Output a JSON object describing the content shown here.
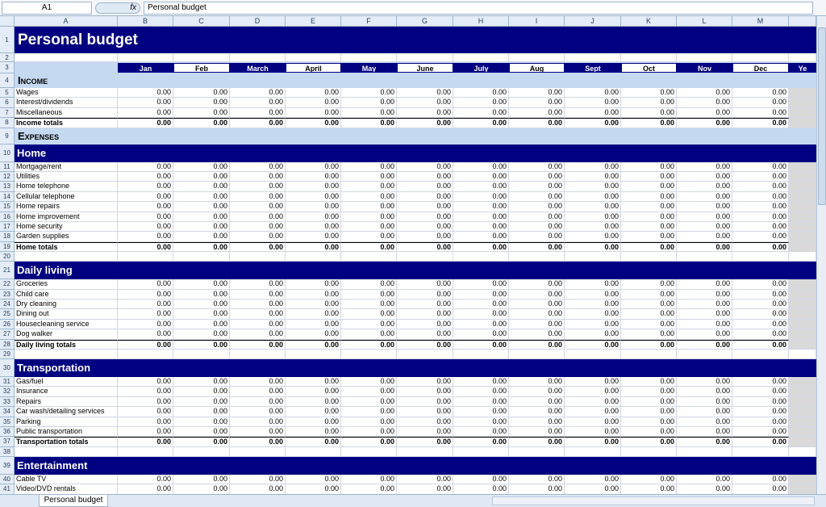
{
  "name_box": "A1",
  "fx_label": "fx",
  "formula": "Personal budget",
  "sheet_tab": "Personal budget",
  "columns": [
    "A",
    "B",
    "C",
    "D",
    "E",
    "F",
    "G",
    "H",
    "I",
    "J",
    "K",
    "L",
    "M"
  ],
  "months": [
    "Jan",
    "Feb",
    "March",
    "April",
    "May",
    "June",
    "July",
    "Aug",
    "Sept",
    "Oct",
    "Nov",
    "Dec",
    "Ye"
  ],
  "row_numbers": [
    1,
    2,
    3,
    4,
    5,
    6,
    7,
    8,
    9,
    10,
    11,
    12,
    13,
    14,
    15,
    16,
    17,
    18,
    19,
    20,
    21,
    22,
    23,
    24,
    25,
    26,
    27,
    28,
    29,
    30,
    31,
    32,
    33,
    34,
    35,
    36,
    37,
    38,
    39,
    40,
    41
  ],
  "rows": [
    {
      "kind": "title",
      "label": "Personal budget"
    },
    {
      "kind": "blank"
    },
    {
      "kind": "months"
    },
    {
      "kind": "section",
      "label": "Income"
    },
    {
      "kind": "item",
      "label": "Wages",
      "values": [
        "0.00",
        "0.00",
        "0.00",
        "0.00",
        "0.00",
        "0.00",
        "0.00",
        "0.00",
        "0.00",
        "0.00",
        "0.00",
        "0.00"
      ]
    },
    {
      "kind": "item",
      "label": "Interest/dividends",
      "values": [
        "0.00",
        "0.00",
        "0.00",
        "0.00",
        "0.00",
        "0.00",
        "0.00",
        "0.00",
        "0.00",
        "0.00",
        "0.00",
        "0.00"
      ]
    },
    {
      "kind": "item",
      "label": "Miscellaneous",
      "values": [
        "0.00",
        "0.00",
        "0.00",
        "0.00",
        "0.00",
        "0.00",
        "0.00",
        "0.00",
        "0.00",
        "0.00",
        "0.00",
        "0.00"
      ]
    },
    {
      "kind": "total",
      "label": "Income totals",
      "values": [
        "0.00",
        "0.00",
        "0.00",
        "0.00",
        "0.00",
        "0.00",
        "0.00",
        "0.00",
        "0.00",
        "0.00",
        "0.00",
        "0.00"
      ]
    },
    {
      "kind": "section",
      "label": "Expenses"
    },
    {
      "kind": "band",
      "label": "Home"
    },
    {
      "kind": "item",
      "label": "Mortgage/rent",
      "values": [
        "0.00",
        "0.00",
        "0.00",
        "0.00",
        "0.00",
        "0.00",
        "0.00",
        "0.00",
        "0.00",
        "0.00",
        "0.00",
        "0.00"
      ]
    },
    {
      "kind": "item",
      "label": "Utilities",
      "values": [
        "0.00",
        "0.00",
        "0.00",
        "0.00",
        "0.00",
        "0.00",
        "0.00",
        "0.00",
        "0.00",
        "0.00",
        "0.00",
        "0.00"
      ]
    },
    {
      "kind": "item",
      "label": "Home telephone",
      "values": [
        "0.00",
        "0.00",
        "0.00",
        "0.00",
        "0.00",
        "0.00",
        "0.00",
        "0.00",
        "0.00",
        "0.00",
        "0.00",
        "0.00"
      ]
    },
    {
      "kind": "item",
      "label": "Cellular telephone",
      "values": [
        "0.00",
        "0.00",
        "0.00",
        "0.00",
        "0.00",
        "0.00",
        "0.00",
        "0.00",
        "0.00",
        "0.00",
        "0.00",
        "0.00"
      ]
    },
    {
      "kind": "item",
      "label": "Home repairs",
      "values": [
        "0.00",
        "0.00",
        "0.00",
        "0.00",
        "0.00",
        "0.00",
        "0.00",
        "0.00",
        "0.00",
        "0.00",
        "0.00",
        "0.00"
      ]
    },
    {
      "kind": "item",
      "label": "Home improvement",
      "values": [
        "0.00",
        "0.00",
        "0.00",
        "0.00",
        "0.00",
        "0.00",
        "0.00",
        "0.00",
        "0.00",
        "0.00",
        "0.00",
        "0.00"
      ]
    },
    {
      "kind": "item",
      "label": "Home security",
      "values": [
        "0.00",
        "0.00",
        "0.00",
        "0.00",
        "0.00",
        "0.00",
        "0.00",
        "0.00",
        "0.00",
        "0.00",
        "0.00",
        "0.00"
      ]
    },
    {
      "kind": "item",
      "label": "Garden supplies",
      "values": [
        "0.00",
        "0.00",
        "0.00",
        "0.00",
        "0.00",
        "0.00",
        "0.00",
        "0.00",
        "0.00",
        "0.00",
        "0.00",
        "0.00"
      ]
    },
    {
      "kind": "total",
      "label": "Home totals",
      "values": [
        "0.00",
        "0.00",
        "0.00",
        "0.00",
        "0.00",
        "0.00",
        "0.00",
        "0.00",
        "0.00",
        "0.00",
        "0.00",
        "0.00"
      ]
    },
    {
      "kind": "blank"
    },
    {
      "kind": "band",
      "label": "Daily living"
    },
    {
      "kind": "item",
      "label": "Groceries",
      "values": [
        "0.00",
        "0.00",
        "0.00",
        "0.00",
        "0.00",
        "0.00",
        "0.00",
        "0.00",
        "0.00",
        "0.00",
        "0.00",
        "0.00"
      ]
    },
    {
      "kind": "item",
      "label": "Child care",
      "values": [
        "0.00",
        "0.00",
        "0.00",
        "0.00",
        "0.00",
        "0.00",
        "0.00",
        "0.00",
        "0.00",
        "0.00",
        "0.00",
        "0.00"
      ]
    },
    {
      "kind": "item",
      "label": "Dry cleaning",
      "values": [
        "0.00",
        "0.00",
        "0.00",
        "0.00",
        "0.00",
        "0.00",
        "0.00",
        "0.00",
        "0.00",
        "0.00",
        "0.00",
        "0.00"
      ]
    },
    {
      "kind": "item",
      "label": "Dining out",
      "values": [
        "0.00",
        "0.00",
        "0.00",
        "0.00",
        "0.00",
        "0.00",
        "0.00",
        "0.00",
        "0.00",
        "0.00",
        "0.00",
        "0.00"
      ]
    },
    {
      "kind": "item",
      "label": "Housecleaning service",
      "values": [
        "0.00",
        "0.00",
        "0.00",
        "0.00",
        "0.00",
        "0.00",
        "0.00",
        "0.00",
        "0.00",
        "0.00",
        "0.00",
        "0.00"
      ]
    },
    {
      "kind": "item",
      "label": "Dog walker",
      "values": [
        "0.00",
        "0.00",
        "0.00",
        "0.00",
        "0.00",
        "0.00",
        "0.00",
        "0.00",
        "0.00",
        "0.00",
        "0.00",
        "0.00"
      ]
    },
    {
      "kind": "total",
      "label": "Daily living totals",
      "values": [
        "0.00",
        "0.00",
        "0.00",
        "0.00",
        "0.00",
        "0.00",
        "0.00",
        "0.00",
        "0.00",
        "0.00",
        "0.00",
        "0.00"
      ]
    },
    {
      "kind": "blank"
    },
    {
      "kind": "band",
      "label": "Transportation"
    },
    {
      "kind": "item",
      "label": "Gas/fuel",
      "values": [
        "0.00",
        "0.00",
        "0.00",
        "0.00",
        "0.00",
        "0.00",
        "0.00",
        "0.00",
        "0.00",
        "0.00",
        "0.00",
        "0.00"
      ]
    },
    {
      "kind": "item",
      "label": "Insurance",
      "values": [
        "0.00",
        "0.00",
        "0.00",
        "0.00",
        "0.00",
        "0.00",
        "0.00",
        "0.00",
        "0.00",
        "0.00",
        "0.00",
        "0.00"
      ]
    },
    {
      "kind": "item",
      "label": "Repairs",
      "values": [
        "0.00",
        "0.00",
        "0.00",
        "0.00",
        "0.00",
        "0.00",
        "0.00",
        "0.00",
        "0.00",
        "0.00",
        "0.00",
        "0.00"
      ]
    },
    {
      "kind": "item",
      "label": "Car wash/detailing services",
      "values": [
        "0.00",
        "0.00",
        "0.00",
        "0.00",
        "0.00",
        "0.00",
        "0.00",
        "0.00",
        "0.00",
        "0.00",
        "0.00",
        "0.00"
      ]
    },
    {
      "kind": "item",
      "label": "Parking",
      "values": [
        "0.00",
        "0.00",
        "0.00",
        "0.00",
        "0.00",
        "0.00",
        "0.00",
        "0.00",
        "0.00",
        "0.00",
        "0.00",
        "0.00"
      ]
    },
    {
      "kind": "item",
      "label": "Public transportation",
      "values": [
        "0.00",
        "0.00",
        "0.00",
        "0.00",
        "0.00",
        "0.00",
        "0.00",
        "0.00",
        "0.00",
        "0.00",
        "0.00",
        "0.00"
      ]
    },
    {
      "kind": "total",
      "label": "Transportation totals",
      "values": [
        "0.00",
        "0.00",
        "0.00",
        "0.00",
        "0.00",
        "0.00",
        "0.00",
        "0.00",
        "0.00",
        "0.00",
        "0.00",
        "0.00"
      ]
    },
    {
      "kind": "blank"
    },
    {
      "kind": "band",
      "label": "Entertainment"
    },
    {
      "kind": "item",
      "label": "Cable TV",
      "values": [
        "0.00",
        "0.00",
        "0.00",
        "0.00",
        "0.00",
        "0.00",
        "0.00",
        "0.00",
        "0.00",
        "0.00",
        "0.00",
        "0.00"
      ]
    },
    {
      "kind": "item",
      "label": "Video/DVD rentals",
      "values": [
        "0.00",
        "0.00",
        "0.00",
        "0.00",
        "0.00",
        "0.00",
        "0.00",
        "0.00",
        "0.00",
        "0.00",
        "0.00",
        "0.00"
      ]
    }
  ]
}
